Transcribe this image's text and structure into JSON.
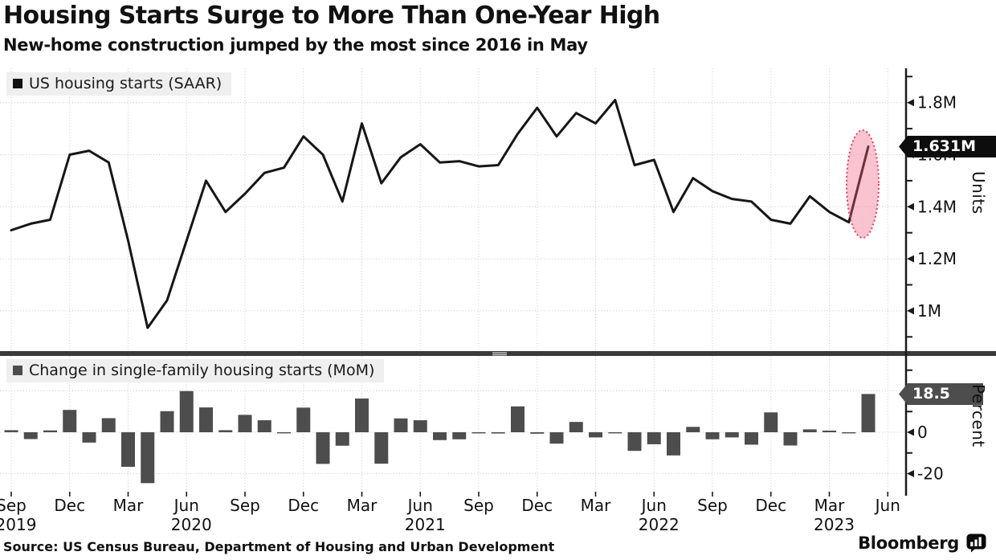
{
  "header": {
    "title": "Housing Starts Surge to More Than One-Year High",
    "subtitle": "New-home construction jumped by the most since 2016 in May"
  },
  "top_panel": {
    "legend_label": "US housing starts (SAAR)",
    "legend_swatch_color": "#111111",
    "axis_label": "Units",
    "last_value_badge": "1.631M",
    "badge_bg": "#0d0d0d"
  },
  "bottom_panel": {
    "legend_label": "Change in single-family housing starts (MoM)",
    "legend_swatch_color": "#4d4d4d",
    "axis_label": "Percent",
    "last_value_badge": "18.5",
    "badge_bg": "#4d4d4d"
  },
  "footer": {
    "source": "Source: US Census Bureau, Department of Housing and Urban Development",
    "brand": "Bloomberg",
    "brand_icon": "bloomberg-bars-logo"
  },
  "colors": {
    "grid": "#c9c9c9",
    "axis": "#1a1a1a",
    "divider": "#3a3a3a",
    "divider_handle": "#d9d9d9",
    "legend_bg": "#efefef",
    "line": "#161616",
    "bar": "#4d4d4d",
    "highlight_fill": "rgba(244,96,128,0.38)",
    "highlight_stroke": "#f23a5b"
  },
  "x_axis": {
    "ticks": [
      {
        "month": "Sep",
        "year": "2019"
      },
      {
        "month": "Dec",
        "year": ""
      },
      {
        "month": "Mar",
        "year": ""
      },
      {
        "month": "Jun",
        "year": "2020"
      },
      {
        "month": "Sep",
        "year": ""
      },
      {
        "month": "Dec",
        "year": ""
      },
      {
        "month": "Mar",
        "year": ""
      },
      {
        "month": "Jun",
        "year": "2021"
      },
      {
        "month": "Sep",
        "year": ""
      },
      {
        "month": "Dec",
        "year": ""
      },
      {
        "month": "Mar",
        "year": ""
      },
      {
        "month": "Jun",
        "year": "2022"
      },
      {
        "month": "Sep",
        "year": ""
      },
      {
        "month": "Dec",
        "year": ""
      },
      {
        "month": "Mar",
        "year": "2023"
      },
      {
        "month": "Jun",
        "year": ""
      }
    ]
  },
  "chart_data": [
    {
      "type": "line",
      "title": "US housing starts (SAAR)",
      "ylabel": "Units",
      "unit": "millions of units, seasonally adjusted annual rate",
      "x": [
        "Sep 2019",
        "Oct 2019",
        "Nov 2019",
        "Dec 2019",
        "Jan 2020",
        "Feb 2020",
        "Mar 2020",
        "Apr 2020",
        "May 2020",
        "Jun 2020",
        "Jul 2020",
        "Aug 2020",
        "Sep 2020",
        "Oct 2020",
        "Nov 2020",
        "Dec 2020",
        "Jan 2021",
        "Feb 2021",
        "Mar 2021",
        "Apr 2021",
        "May 2021",
        "Jun 2021",
        "Jul 2021",
        "Aug 2021",
        "Sep 2021",
        "Oct 2021",
        "Nov 2021",
        "Dec 2021",
        "Jan 2022",
        "Feb 2022",
        "Mar 2022",
        "Apr 2022",
        "May 2022",
        "Jun 2022",
        "Jul 2022",
        "Aug 2022",
        "Sep 2022",
        "Oct 2022",
        "Nov 2022",
        "Dec 2022",
        "Jan 2023",
        "Feb 2023",
        "Mar 2023",
        "Apr 2023",
        "May 2023"
      ],
      "values": [
        1.31,
        1.335,
        1.35,
        1.6,
        1.615,
        1.57,
        1.27,
        0.935,
        1.04,
        1.27,
        1.5,
        1.38,
        1.45,
        1.53,
        1.55,
        1.67,
        1.6,
        1.42,
        1.72,
        1.49,
        1.59,
        1.64,
        1.57,
        1.575,
        1.555,
        1.56,
        1.68,
        1.78,
        1.67,
        1.76,
        1.72,
        1.81,
        1.56,
        1.58,
        1.38,
        1.51,
        1.46,
        1.43,
        1.42,
        1.35,
        1.335,
        1.44,
        1.38,
        1.34,
        1.631
      ],
      "ylim": [
        0.845,
        1.932
      ],
      "yticks_labeled": [
        {
          "value": 1.8,
          "label": "1.8M"
        },
        {
          "value": 1.6,
          "label": "1.6M"
        },
        {
          "value": 1.4,
          "label": "1.4M"
        },
        {
          "value": 1.2,
          "label": "1.2M"
        },
        {
          "value": 1.0,
          "label": "1M"
        }
      ],
      "yticks_minor": [
        1.9,
        1.7,
        1.5,
        1.3,
        1.1,
        0.9
      ],
      "grid": "dotted",
      "legend_position": "top-left",
      "highlight": {
        "month": "May 2023",
        "label": "1.631M",
        "shape": "dashed-ellipse"
      }
    },
    {
      "type": "bar",
      "title": "Change in single-family housing starts (MoM)",
      "ylabel": "Percent",
      "unit": "percent, month over month",
      "x": [
        "Sep 2019",
        "Oct 2019",
        "Nov 2019",
        "Dec 2019",
        "Jan 2020",
        "Feb 2020",
        "Mar 2020",
        "Apr 2020",
        "May 2020",
        "Jun 2020",
        "Jul 2020",
        "Aug 2020",
        "Sep 2020",
        "Oct 2020",
        "Nov 2020",
        "Dec 2020",
        "Jan 2021",
        "Feb 2021",
        "Mar 2021",
        "Apr 2021",
        "May 2021",
        "Jun 2021",
        "Jul 2021",
        "Aug 2021",
        "Sep 2021",
        "Oct 2021",
        "Nov 2021",
        "Dec 2021",
        "Jan 2022",
        "Feb 2022",
        "Mar 2022",
        "Apr 2022",
        "May 2022",
        "Jun 2022",
        "Jul 2022",
        "Aug 2022",
        "Sep 2022",
        "Oct 2022",
        "Nov 2022",
        "Dec 2022",
        "Jan 2023",
        "Feb 2023",
        "Mar 2023",
        "Apr 2023",
        "May 2023"
      ],
      "values": [
        1.0,
        -3.3,
        0.9,
        10.8,
        -5.0,
        6.8,
        -16.7,
        -24.6,
        10.2,
        19.9,
        12.0,
        1.0,
        8.4,
        5.8,
        -0.5,
        11.9,
        -15.3,
        -6.5,
        16.3,
        -15.2,
        6.7,
        5.8,
        -3.8,
        -3.4,
        -0.5,
        -0.6,
        12.5,
        -0.7,
        -5.5,
        5.0,
        -2.5,
        -0.4,
        -9.0,
        -5.8,
        -11.2,
        2.6,
        -3.4,
        -2.5,
        -6.0,
        9.6,
        -6.4,
        1.4,
        0.8,
        -0.3,
        18.5
      ],
      "ylim": [
        -28,
        37
      ],
      "yticks_labeled": [
        {
          "value": 0,
          "label": "0"
        },
        {
          "value": -20,
          "label": "-20"
        }
      ],
      "yticks_minor": [
        30,
        10,
        -10
      ],
      "gridlines": [
        20,
        0,
        -20
      ],
      "grid": "dotted",
      "legend_position": "top-left",
      "highlight": {
        "month": "May 2023",
        "label": "18.5"
      }
    }
  ]
}
